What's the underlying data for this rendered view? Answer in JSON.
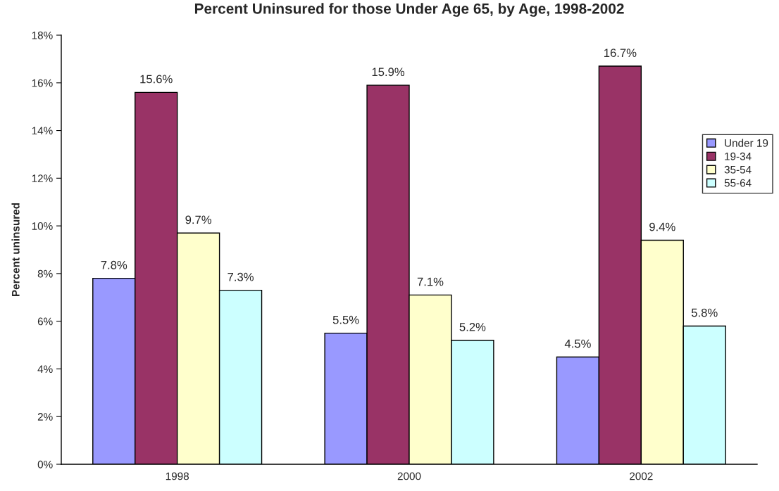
{
  "chart_data": {
    "type": "bar",
    "title": "Percent Uninsured for those Under Age 65, by Age, 1998-2002",
    "ylabel": "Percent uninsured",
    "categories": [
      "1998",
      "2000",
      "2002"
    ],
    "series": [
      {
        "name": "Under 19",
        "color": "#9999ff",
        "values": [
          7.8,
          5.5,
          4.5
        ],
        "value_labels": [
          "7.8%",
          "5.5%",
          "4.5%"
        ]
      },
      {
        "name": "19-34",
        "color": "#993366",
        "values": [
          15.6,
          15.9,
          16.7
        ],
        "value_labels": [
          "15.6%",
          "15.9%",
          "16.7%"
        ]
      },
      {
        "name": "35-54",
        "color": "#ffffcc",
        "values": [
          9.7,
          7.1,
          9.4
        ],
        "value_labels": [
          "9.7%",
          "7.1%",
          "9.4%"
        ]
      },
      {
        "name": "55-64",
        "color": "#ccffff",
        "values": [
          7.3,
          5.2,
          5.8
        ],
        "value_labels": [
          "7.3%",
          "5.2%",
          "5.8%"
        ]
      }
    ],
    "ylim": [
      0,
      18
    ],
    "yticks": [
      {
        "value": 0,
        "label": "0%"
      },
      {
        "value": 2,
        "label": "2%"
      },
      {
        "value": 4,
        "label": "4%"
      },
      {
        "value": 6,
        "label": "6%"
      },
      {
        "value": 8,
        "label": "8%"
      },
      {
        "value": 10,
        "label": "10%"
      },
      {
        "value": 12,
        "label": "12%"
      },
      {
        "value": 14,
        "label": "14%"
      },
      {
        "value": 16,
        "label": "16%"
      },
      {
        "value": 18,
        "label": "18%"
      }
    ],
    "grid": false,
    "legend": "right"
  }
}
